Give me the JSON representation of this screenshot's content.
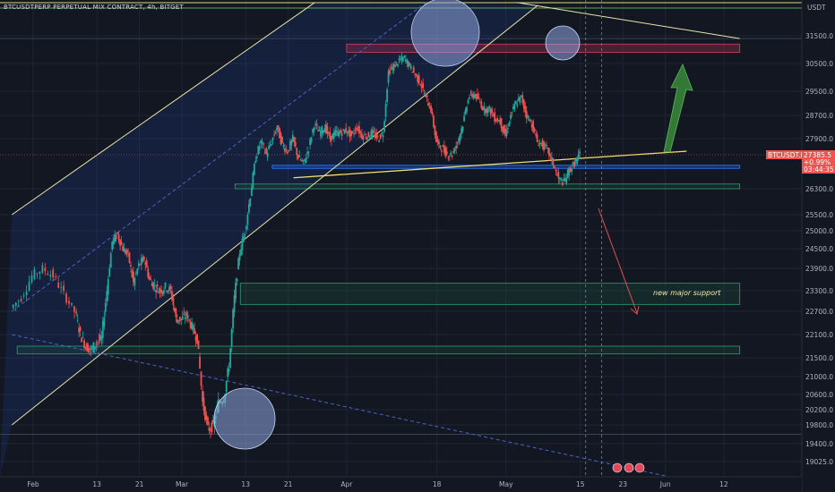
{
  "header": {
    "symbol_title": "BTCUSDTPERP PERPETUAL MIX CONTRACT, 4h, BITGET",
    "currency": "USDT"
  },
  "price_tag": {
    "symbol": "BTCUSDT.P",
    "price": "27385.5",
    "change": "+0.99%",
    "countdown": "03:44:35"
  },
  "annotations": {
    "support_label": "new major support"
  },
  "colors": {
    "background": "#131722",
    "up_candle": "#26a69a",
    "down_candle": "#ef5350",
    "channel_line": "#e9e6a8",
    "support_zone": "#1e6b4a",
    "resistance_zone": "#b0304a",
    "blue_zone": "#2962ff",
    "arrow_green": "#3a8a3a",
    "target_arrow": "#e05050",
    "highlight_circle": "#8fa6e0"
  },
  "chart_data": {
    "type": "candlestick",
    "title": "BTCUSDTPERP PERPETUAL MIX CONTRACT, 4h, BITGET",
    "ylabel": "USDT",
    "ylim": [
      18700,
      32700
    ],
    "y_ticks": [
      19025.0,
      19400.0,
      19800.0,
      20200.0,
      20600.0,
      21000.0,
      21500.0,
      22100.0,
      22700.0,
      23300.0,
      23900.0,
      24500.0,
      25000.0,
      25500.0,
      26300.0,
      27900.0,
      28700.0,
      29500.0,
      30500.0,
      31500.0
    ],
    "y_tick_labels": [
      "19025.0",
      "19400.0",
      "19800.0",
      "20200.0",
      "20600.0",
      "21000.0",
      "21500.0",
      "22100.0",
      "22700.0",
      "23300.0",
      "23900.0",
      "24500.0",
      "25000.0",
      "25500.0",
      "26300.0",
      "27900.0",
      "28700.0",
      "29500.0",
      "30500.0",
      "31500.0"
    ],
    "x_ticks": [
      "Feb",
      "13",
      "21",
      "Mar",
      "13",
      "21",
      "Apr",
      "18",
      "May",
      "15",
      "23",
      "Jun",
      "12"
    ],
    "x_tick_days": [
      0,
      12,
      20,
      28,
      40,
      48,
      59,
      76,
      89,
      103,
      111,
      119,
      130
    ],
    "grid": true,
    "last_price": 27385.5,
    "price_path": [
      [
        -4,
        22800
      ],
      [
        -2,
        23100
      ],
      [
        0,
        23700
      ],
      [
        2,
        23900
      ],
      [
        4,
        23700
      ],
      [
        6,
        23200
      ],
      [
        8,
        22700
      ],
      [
        9,
        22100
      ],
      [
        10,
        21800
      ],
      [
        11,
        21700
      ],
      [
        12,
        21900
      ],
      [
        13,
        22000
      ],
      [
        14,
        23300
      ],
      [
        15,
        24700
      ],
      [
        16,
        24900
      ],
      [
        17,
        24500
      ],
      [
        18,
        24300
      ],
      [
        19,
        23500
      ],
      [
        20,
        24000
      ],
      [
        21,
        24200
      ],
      [
        22,
        23600
      ],
      [
        23,
        23400
      ],
      [
        24,
        23300
      ],
      [
        25,
        23400
      ],
      [
        26,
        23300
      ],
      [
        27,
        22500
      ],
      [
        28,
        22500
      ],
      [
        29,
        22600
      ],
      [
        30,
        22300
      ],
      [
        31,
        22000
      ],
      [
        32,
        20400
      ],
      [
        33,
        19700
      ],
      [
        34,
        19800
      ],
      [
        35,
        20400
      ],
      [
        36,
        20500
      ],
      [
        37,
        21300
      ],
      [
        38,
        23100
      ],
      [
        39,
        24400
      ],
      [
        40,
        25000
      ],
      [
        41,
        26100
      ],
      [
        42,
        27300
      ],
      [
        43,
        27800
      ],
      [
        44,
        27400
      ],
      [
        45,
        27800
      ],
      [
        46,
        28300
      ],
      [
        47,
        27700
      ],
      [
        48,
        27500
      ],
      [
        49,
        27900
      ],
      [
        50,
        27300
      ],
      [
        51,
        27100
      ],
      [
        52,
        27600
      ],
      [
        53,
        28400
      ],
      [
        54,
        28100
      ],
      [
        55,
        28300
      ],
      [
        56,
        27900
      ],
      [
        57,
        28100
      ],
      [
        58,
        28100
      ],
      [
        59,
        28200
      ],
      [
        60,
        28000
      ],
      [
        61,
        28300
      ],
      [
        62,
        28000
      ],
      [
        63,
        28000
      ],
      [
        64,
        28100
      ],
      [
        65,
        27900
      ],
      [
        66,
        28100
      ],
      [
        67,
        30200
      ],
      [
        68,
        30400
      ],
      [
        69,
        30600
      ],
      [
        70,
        30700
      ],
      [
        71,
        30400
      ],
      [
        72,
        30100
      ],
      [
        73,
        29800
      ],
      [
        74,
        29300
      ],
      [
        75,
        28900
      ],
      [
        76,
        27800
      ],
      [
        77,
        27600
      ],
      [
        78,
        27400
      ],
      [
        79,
        27400
      ],
      [
        80,
        27800
      ],
      [
        81,
        28400
      ],
      [
        82,
        29300
      ],
      [
        83,
        29400
      ],
      [
        84,
        29200
      ],
      [
        85,
        28900
      ],
      [
        86,
        28900
      ],
      [
        87,
        28600
      ],
      [
        88,
        28500
      ],
      [
        89,
        28000
      ],
      [
        90,
        28700
      ],
      [
        91,
        29100
      ],
      [
        92,
        29300
      ],
      [
        93,
        28700
      ],
      [
        94,
        28400
      ],
      [
        95,
        27800
      ],
      [
        96,
        27700
      ],
      [
        97,
        27500
      ],
      [
        98,
        27100
      ],
      [
        99,
        26600
      ],
      [
        100,
        26500
      ],
      [
        101,
        26900
      ],
      [
        102,
        27100
      ],
      [
        103,
        27386
      ]
    ],
    "zones": [
      {
        "kind": "resistance",
        "from": 30900,
        "to": 31200,
        "start_day": 59,
        "end_day": 133
      },
      {
        "kind": "blue",
        "from": 26950,
        "to": 27050,
        "start_day": 45,
        "end_day": 133
      },
      {
        "kind": "support",
        "from": 26300,
        "to": 26450,
        "start_day": 38,
        "end_day": 133
      },
      {
        "kind": "support",
        "from": 22900,
        "to": 23500,
        "start_day": 39,
        "end_day": 133
      },
      {
        "kind": "support",
        "from": 21600,
        "to": 21800,
        "start_day": -3,
        "end_day": 133
      }
    ],
    "trendlines": [
      {
        "kind": "channel-upper",
        "from": [
          -4,
          25500
        ],
        "to": [
          53,
          32700
        ]
      },
      {
        "kind": "channel-lower",
        "from": [
          -4,
          19800
        ],
        "to": [
          95,
          32600
        ]
      },
      {
        "kind": "channel-mid-dashed",
        "from": [
          -4,
          22700
        ],
        "to": [
          74,
          32700
        ]
      },
      {
        "kind": "rising-support",
        "from": [
          49,
          26650
        ],
        "to": [
          123,
          27500
        ]
      },
      {
        "kind": "descending-dashed",
        "from": [
          -4,
          22100
        ],
        "to": [
          120,
          18700
        ]
      },
      {
        "kind": "descending-resistance",
        "from": [
          91,
          32700
        ],
        "to": [
          133,
          31400
        ]
      }
    ],
    "highlight_levels": [
      19600,
      31400,
      32500
    ]
  }
}
